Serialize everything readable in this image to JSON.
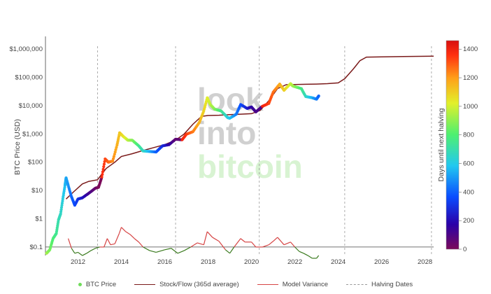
{
  "colors": {
    "stock_flow": "#7a1a1a",
    "variance_positive": "#d64545",
    "variance_negative": "#3a7a1e",
    "halving_line": "#999999",
    "legend_dot": "#6fdc5a",
    "watermark_gray": "#d0d0d0",
    "watermark_green": "#d8f3d2"
  },
  "watermark": [
    "look",
    "into",
    "bitcoin"
  ],
  "legend": [
    {
      "label": "BTC Price",
      "icon": "dot",
      "color": "#6fdc5a"
    },
    {
      "label": "Stock/Flow (365d average)",
      "icon": "line",
      "color": "#7a1a1a"
    },
    {
      "label": "Model Variance",
      "icon": "line",
      "color": "#d64545"
    },
    {
      "label": "Halving Dates",
      "icon": "dash",
      "color": "#999999"
    }
  ],
  "chart_data": {
    "type": "line",
    "ylabel": "BTC Price (USD)",
    "yscale": "log",
    "yticks": [
      0.1,
      1,
      10,
      100,
      1000,
      10000,
      100000,
      1000000
    ],
    "ytick_labels": [
      "$0.1",
      "$1",
      "$10",
      "$100",
      "$1,000",
      "$10,000",
      "$100,000",
      "$1,000,000"
    ],
    "xticks": [
      2012,
      2014,
      2016,
      2018,
      2020,
      2022,
      2024,
      2026,
      2028
    ],
    "xlim": [
      2010.5,
      2028.4
    ],
    "ylim_log10": [
      -1.3,
      6.45
    ],
    "halving_dates": [
      2012.9,
      2016.5,
      2020.36,
      2024.3,
      2028.3
    ],
    "colorbar": {
      "title": "Days until next halving",
      "ticks": [
        0,
        200,
        400,
        600,
        800,
        1000,
        1200,
        1400
      ],
      "range": [
        0,
        1460
      ],
      "colors": [
        "#7b0b5a",
        "#2a00a8",
        "#0a4cff",
        "#22c8f0",
        "#4ef070",
        "#e2f02a",
        "#ffa01a",
        "#ff3010",
        "#d81010"
      ]
    },
    "series": [
      {
        "name": "BTC Price",
        "x": [
          2010.55,
          2010.7,
          2010.85,
          2011.0,
          2011.1,
          2011.2,
          2011.3,
          2011.4,
          2011.45,
          2011.55,
          2011.7,
          2011.85,
          2012.0,
          2012.2,
          2012.5,
          2012.8,
          2012.95,
          2013.1,
          2013.25,
          2013.4,
          2013.6,
          2013.8,
          2013.92,
          2014.1,
          2014.3,
          2014.5,
          2014.8,
          2015.0,
          2015.3,
          2015.6,
          2015.9,
          2016.2,
          2016.5,
          2016.8,
          2017.0,
          2017.3,
          2017.6,
          2017.8,
          2017.96,
          2018.1,
          2018.3,
          2018.6,
          2018.9,
          2019.0,
          2019.3,
          2019.5,
          2019.8,
          2020.0,
          2020.2,
          2020.5,
          2020.8,
          2021.0,
          2021.3,
          2021.5,
          2021.8,
          2021.9,
          2022.0,
          2022.3,
          2022.5,
          2022.8,
          2023.0,
          2023.1
        ],
        "y": [
          0.06,
          0.08,
          0.2,
          0.3,
          0.9,
          1.5,
          5,
          15,
          28,
          15,
          6,
          3,
          5,
          5.5,
          8,
          12,
          13,
          30,
          130,
          100,
          110,
          400,
          1100,
          800,
          600,
          600,
          380,
          250,
          240,
          230,
          380,
          420,
          650,
          620,
          980,
          1200,
          2600,
          6500,
          19000,
          11000,
          7500,
          6500,
          3800,
          3600,
          5000,
          11000,
          8000,
          9000,
          6000,
          9500,
          12000,
          30000,
          58000,
          35000,
          60000,
          50000,
          47000,
          40000,
          21000,
          19000,
          17000,
          22000
        ],
        "days_until_halving": [
          840,
          780,
          720,
          680,
          640,
          610,
          570,
          530,
          500,
          470,
          410,
          360,
          310,
          240,
          130,
          40,
          0,
          1300,
          1250,
          1200,
          1130,
          1060,
          1010,
          940,
          870,
          800,
          690,
          620,
          510,
          400,
          290,
          180,
          60,
          1340,
          1270,
          1160,
          1050,
          980,
          920,
          870,
          800,
          690,
          580,
          550,
          440,
          370,
          260,
          180,
          110,
          1360,
          1250,
          1180,
          1070,
          990,
          880,
          850,
          810,
          700,
          620,
          510,
          440,
          400
        ]
      },
      {
        "name": "Stock/Flow (365d average)",
        "x": [
          2011.45,
          2011.8,
          2012.2,
          2012.5,
          2012.9,
          2013.3,
          2013.7,
          2014.0,
          2014.5,
          2015.0,
          2015.5,
          2016.0,
          2016.5,
          2016.9,
          2017.3,
          2017.7,
          2018.0,
          2018.5,
          2019.0,
          2019.5,
          2020.0,
          2020.4,
          2020.8,
          2021.2,
          2021.6,
          2022.0,
          2022.5,
          2023.0,
          2023.5,
          2024.0,
          2024.3,
          2024.7,
          2025.0,
          2025.3,
          2026.0,
          2027.0,
          2028.4
        ],
        "y": [
          5,
          9,
          17,
          21,
          24,
          60,
          100,
          160,
          200,
          260,
          330,
          420,
          600,
          1000,
          2200,
          4200,
          4500,
          4600,
          4800,
          5000,
          5200,
          6800,
          15000,
          40000,
          55000,
          56000,
          57000,
          58000,
          60000,
          64000,
          90000,
          200000,
          390000,
          520000,
          530000,
          545000,
          560000
        ]
      },
      {
        "name": "Model Variance",
        "x": [
          2011.55,
          2011.7,
          2011.85,
          2012.0,
          2012.2,
          2012.4,
          2012.6,
          2012.8,
          2013.0,
          2013.2,
          2013.35,
          2013.5,
          2013.7,
          2013.9,
          2014.0,
          2014.2,
          2014.4,
          2014.6,
          2014.8,
          2015.0,
          2015.3,
          2015.6,
          2016.0,
          2016.3,
          2016.6,
          2016.9,
          2017.2,
          2017.5,
          2017.8,
          2017.96,
          2018.2,
          2018.5,
          2018.8,
          2019.0,
          2019.2,
          2019.5,
          2019.7,
          2020.0,
          2020.2,
          2020.5,
          2020.8,
          2021.0,
          2021.2,
          2021.5,
          2021.8,
          2022.0,
          2022.2,
          2022.4,
          2022.6,
          2022.8,
          2023.0,
          2023.1
        ],
        "y": [
          0.2,
          0.09,
          0.06,
          0.065,
          0.05,
          0.06,
          0.075,
          0.09,
          0.1,
          0.1,
          0.2,
          0.12,
          0.13,
          0.3,
          0.5,
          0.35,
          0.28,
          0.2,
          0.15,
          0.1,
          0.075,
          0.065,
          0.08,
          0.09,
          0.06,
          0.075,
          0.1,
          0.14,
          0.12,
          0.35,
          0.22,
          0.16,
          0.08,
          0.06,
          0.1,
          0.2,
          0.15,
          0.15,
          0.1,
          0.1,
          0.12,
          0.16,
          0.22,
          0.12,
          0.15,
          0.1,
          0.07,
          0.06,
          0.05,
          0.04,
          0.04,
          0.05
        ]
      }
    ]
  }
}
